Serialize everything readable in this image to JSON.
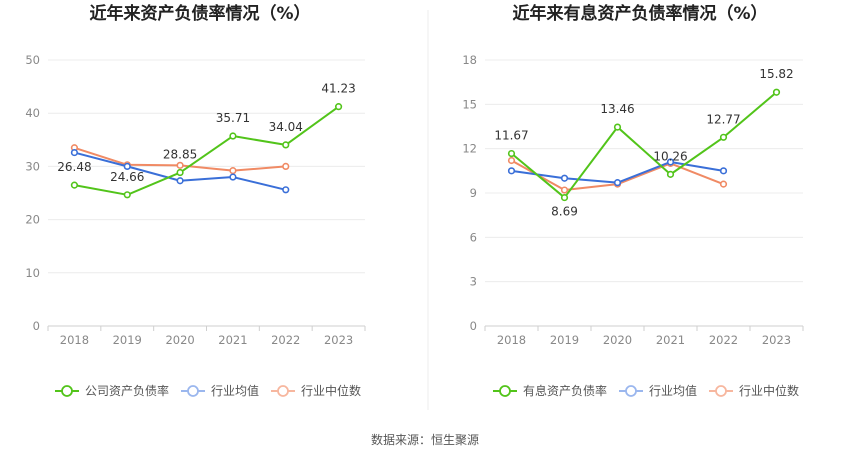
{
  "source_text": "数据来源：恒生聚源",
  "colors": {
    "green": "#52c41a",
    "blue": "#3a6fd8",
    "orange": "#f08a64"
  },
  "chart_data": [
    {
      "type": "line",
      "title": "近年来资产负债率情况（%）",
      "categories": [
        "2018",
        "2019",
        "2020",
        "2021",
        "2022",
        "2023"
      ],
      "yticks": [
        0,
        10,
        20,
        30,
        40,
        50
      ],
      "ylim": [
        0,
        50
      ],
      "grid": true,
      "legend_position": "bottom",
      "series": [
        {
          "name": "公司资产负债率",
          "color": "#52c41a",
          "values": [
            26.48,
            24.66,
            28.85,
            35.71,
            34.04,
            41.23
          ],
          "labels": [
            "26.48",
            "24.66",
            "28.85",
            "35.71",
            "34.04",
            "41.23"
          ],
          "label_offsets": [
            -14,
            -14,
            -14,
            -14,
            -14,
            -14
          ]
        },
        {
          "name": "行业均值",
          "color": "#3a6fd8",
          "values": [
            32.6,
            30.0,
            27.3,
            28.0,
            25.6,
            null
          ]
        },
        {
          "name": "行业中位数",
          "color": "#f08a64",
          "values": [
            33.5,
            30.3,
            30.2,
            29.2,
            30.0,
            null
          ]
        }
      ]
    },
    {
      "type": "line",
      "title": "近年来有息资产负债率情况（%）",
      "categories": [
        "2018",
        "2019",
        "2020",
        "2021",
        "2022",
        "2023"
      ],
      "yticks": [
        0,
        3,
        6,
        9,
        12,
        15,
        18
      ],
      "ylim": [
        0,
        18
      ],
      "grid": true,
      "legend_position": "bottom",
      "series": [
        {
          "name": "有息资产负债率",
          "color": "#52c41a",
          "values": [
            11.67,
            8.69,
            13.46,
            10.26,
            12.77,
            15.82
          ],
          "labels": [
            "11.67",
            "8.69",
            "13.46",
            "10.26",
            "12.77",
            "15.82"
          ],
          "label_offsets": [
            -14,
            14,
            -14,
            -14,
            -14,
            -14
          ]
        },
        {
          "name": "行业均值",
          "color": "#3a6fd8",
          "values": [
            10.5,
            10.0,
            9.7,
            11.1,
            10.5,
            null
          ]
        },
        {
          "name": "行业中位数",
          "color": "#f08a64",
          "values": [
            11.2,
            9.2,
            9.6,
            11.0,
            9.6,
            null
          ]
        }
      ]
    }
  ]
}
